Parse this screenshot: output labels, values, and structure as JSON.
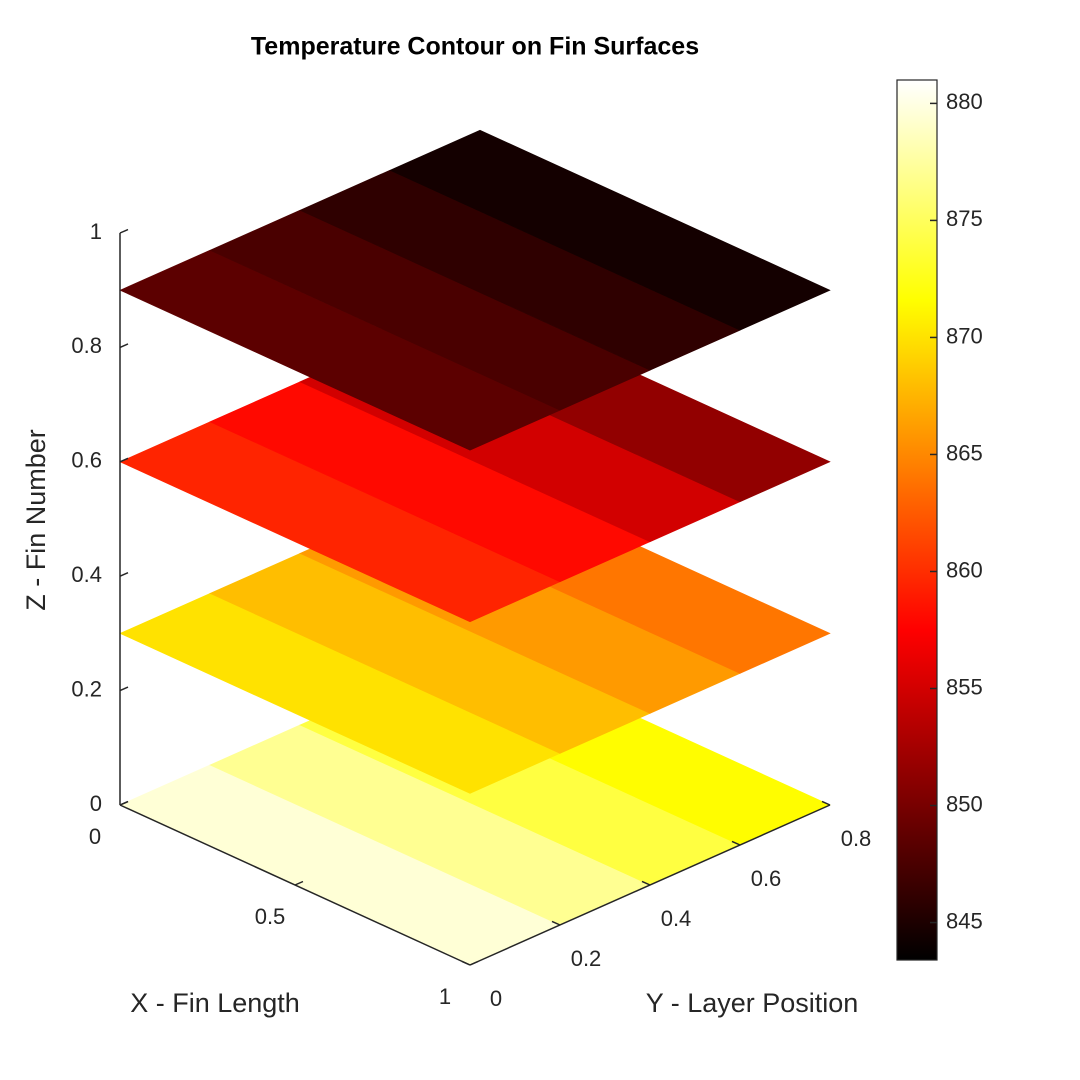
{
  "chart_data": {
    "type": "surface3d",
    "title": "Temperature Contour on Fin Surfaces",
    "x_label": "X - Fin Length",
    "y_label": "Y - Layer Position",
    "z_label": "Z - Fin Number",
    "colormap": "hot",
    "xlim": [
      0,
      1
    ],
    "xticks": [
      0,
      0.5,
      1
    ],
    "ylim": [
      0,
      0.8
    ],
    "yticks": [
      0,
      0.2,
      0.4,
      0.6,
      0.8
    ],
    "zlim": [
      0,
      1
    ],
    "zticks": [
      0,
      0.2,
      0.4,
      0.6,
      0.8,
      1
    ],
    "y_edges": [
      0,
      0.2,
      0.4,
      0.6,
      0.8
    ],
    "planes": [
      {
        "z": 0,
        "values": [
          879.5,
          877,
          874,
          871.5
        ]
      },
      {
        "z": 0.3,
        "values": [
          870,
          868,
          866,
          864
        ]
      },
      {
        "z": 0.6,
        "values": [
          859.5,
          858,
          855,
          851.5
        ]
      },
      {
        "z": 0.9,
        "values": [
          848.5,
          847.5,
          846,
          844.5
        ]
      }
    ],
    "clim": [
      843.4,
      881
    ],
    "colorbar_ticks": [
      845,
      850,
      855,
      860,
      865,
      870,
      875,
      880
    ]
  }
}
